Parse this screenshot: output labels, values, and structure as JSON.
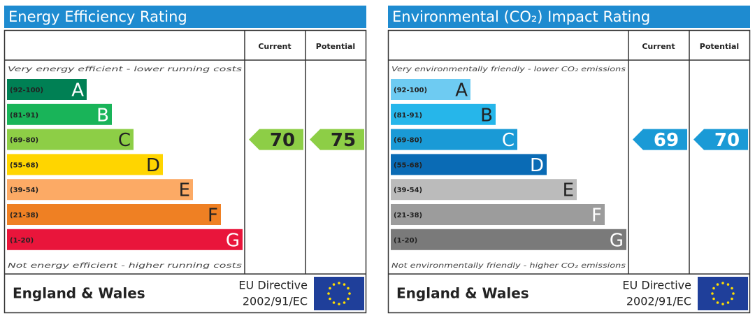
{
  "panels": [
    {
      "title": "Energy Efficiency Rating",
      "header_current": "Current",
      "header_potential": "Potential",
      "top_note": "Very energy efficient - lower running costs",
      "bottom_note": "Not energy efficient - higher running costs",
      "bands": [
        {
          "range": "(92-100)",
          "letter": "A",
          "color": "#008054",
          "letter_color": "#ffffff"
        },
        {
          "range": "(81-91)",
          "letter": "B",
          "color": "#19b459",
          "letter_color": "#ffffff"
        },
        {
          "range": "(69-80)",
          "letter": "C",
          "color": "#8dce46",
          "letter_color": "#222222"
        },
        {
          "range": "(55-68)",
          "letter": "D",
          "color": "#ffd500",
          "letter_color": "#222222"
        },
        {
          "range": "(39-54)",
          "letter": "E",
          "color": "#fcaa65",
          "letter_color": "#222222"
        },
        {
          "range": "(21-38)",
          "letter": "F",
          "color": "#ef8023",
          "letter_color": "#222222"
        },
        {
          "range": "(1-20)",
          "letter": "G",
          "color": "#e9153b",
          "letter_color": "#ffffff"
        }
      ],
      "current": 70,
      "potential": 75,
      "region": "England & Wales",
      "directive": "EU Directive",
      "directive_code": "2002/91/EC"
    },
    {
      "title": "Environmental (CO₂) Impact Rating",
      "header_current": "Current",
      "header_potential": "Potential",
      "top_note": "Very environmentally friendly - lower CO₂ emissions",
      "bottom_note": "Not environmentally friendly - higher CO₂ emissions",
      "bands": [
        {
          "range": "(92-100)",
          "letter": "A",
          "color": "#6ecbf2",
          "letter_color": "#222222"
        },
        {
          "range": "(81-91)",
          "letter": "B",
          "color": "#26b6ea",
          "letter_color": "#222222"
        },
        {
          "range": "(69-80)",
          "letter": "C",
          "color": "#1a9ad6",
          "letter_color": "#ffffff"
        },
        {
          "range": "(55-68)",
          "letter": "D",
          "color": "#0a6bb5",
          "letter_color": "#ffffff"
        },
        {
          "range": "(39-54)",
          "letter": "E",
          "color": "#bbbbbb",
          "letter_color": "#222222"
        },
        {
          "range": "(21-38)",
          "letter": "F",
          "color": "#9c9c9c",
          "letter_color": "#ffffff"
        },
        {
          "range": "(1-20)",
          "letter": "G",
          "color": "#7a7a7a",
          "letter_color": "#ffffff"
        }
      ],
      "current": 69,
      "potential": 70,
      "region": "England & Wales",
      "directive": "EU Directive",
      "directive_code": "2002/91/EC"
    }
  ]
}
